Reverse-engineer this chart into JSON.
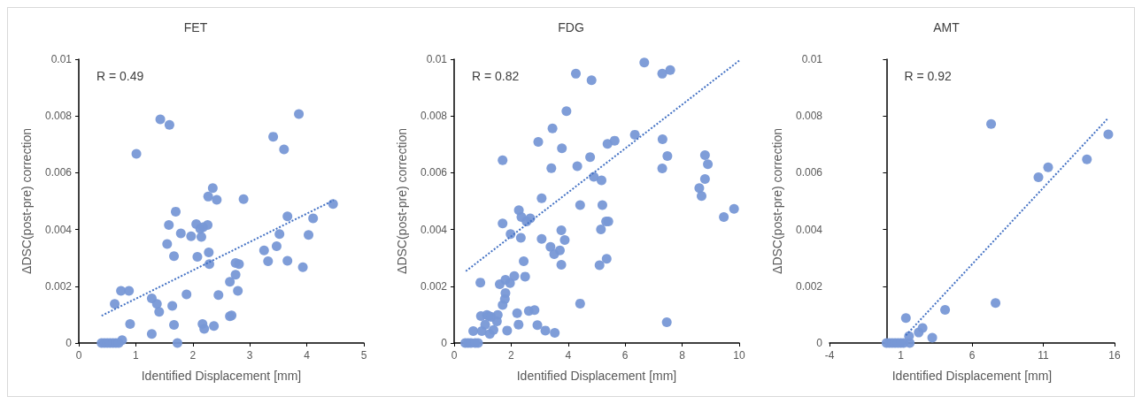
{
  "chart_data": [
    {
      "type": "scatter",
      "title": "FET",
      "xlabel": "Identified Displacement [mm]",
      "ylabel": "ΔDSC(post-pre) correction",
      "annotations": [
        "R = 0.49"
      ],
      "xlim": [
        0,
        5
      ],
      "xticks": [
        0,
        1,
        2,
        3,
        4,
        5
      ],
      "ylim": [
        0,
        0.01
      ],
      "yticks": [
        0,
        0.002,
        0.004,
        0.006,
        0.008,
        0.01
      ],
      "grid": false,
      "series": [
        {
          "marker": "circle",
          "color": "#7898d6",
          "x": [
            0.4,
            0.45,
            0.5,
            0.55,
            0.6,
            0.65,
            0.7,
            0.76,
            0.63,
            0.74,
            0.88,
            0.9,
            1.01,
            1.28,
            1.37,
            1.41,
            1.28,
            1.43,
            1.59,
            1.58,
            1.55,
            1.7,
            1.67,
            1.64,
            1.67,
            1.73,
            1.79,
            1.89,
            1.97,
            2.06,
            2.08,
            2.15,
            2.13,
            2.18,
            2.26,
            2.27,
            2.35,
            2.42,
            2.28,
            2.29,
            2.17,
            2.2,
            2.37,
            2.45,
            2.65,
            2.68,
            2.65,
            2.75,
            2.75,
            2.81,
            2.79,
            2.89,
            3.25,
            3.32,
            3.41,
            3.47,
            3.52,
            3.6,
            3.66,
            3.66,
            3.86,
            3.93,
            4.03,
            4.11,
            4.46
          ],
          "values": [
            0,
            0,
            0,
            0,
            0,
            0,
            0,
            0.0001,
            0.00138,
            0.00184,
            0.00184,
            0.00067,
            0.00667,
            0.00157,
            0.00138,
            0.0011,
            0.00032,
            0.00788,
            0.00769,
            0.00416,
            0.00349,
            0.00463,
            0.00306,
            0.00131,
            0.00064,
            0,
            0.00386,
            0.00171,
            0.00376,
            0.00419,
            0.00304,
            0.00374,
            0.00403,
            0.00408,
            0.00416,
            0.00516,
            0.00546,
            0.00505,
            0.00319,
            0.00278,
            0.00067,
            0.0005,
            0.0006,
            0.00169,
            0.00094,
            0.00097,
            0.00216,
            0.00241,
            0.00282,
            0.00278,
            0.00184,
            0.00507,
            0.00326,
            0.00288,
            0.00727,
            0.00341,
            0.00384,
            0.00682,
            0.00446,
            0.0029,
            0.00807,
            0.00267,
            0.00381,
            0.00439,
            0.0049
          ]
        },
        {
          "type": "line",
          "marker": "none",
          "line_style": "dotted",
          "color": "#4472c4",
          "x": [
            0.4,
            4.47
          ],
          "values": [
            0.00096,
            0.00503
          ]
        }
      ]
    },
    {
      "type": "scatter",
      "title": "FDG",
      "xlabel": "Identified Displacement [mm]",
      "ylabel": "ΔDSC(post-pre) correction",
      "annotations": [
        "R = 0.82"
      ],
      "xlim": [
        0,
        10
      ],
      "xticks": [
        0,
        2,
        4,
        6,
        8,
        10
      ],
      "ylim": [
        0,
        0.01
      ],
      "yticks": [
        0,
        0.002,
        0.004,
        0.006,
        0.008,
        0.01
      ],
      "grid": false,
      "series": [
        {
          "marker": "circle",
          "color": "#7898d6",
          "x": [
            0.39,
            0.49,
            0.59,
            0.74,
            0.84,
            0.67,
            0.92,
            0.94,
            0.97,
            1.09,
            1.15,
            1.22,
            1.3,
            1.25,
            1.38,
            1.5,
            1.53,
            1.6,
            1.7,
            1.7,
            1.7,
            1.78,
            1.8,
            1.8,
            1.96,
            1.98,
            1.86,
            2.11,
            2.21,
            2.26,
            2.27,
            2.34,
            2.36,
            2.44,
            2.49,
            2.54,
            2.67,
            2.62,
            2.82,
            2.92,
            2.95,
            3.07,
            3.07,
            3.2,
            3.38,
            3.41,
            3.45,
            3.51,
            3.53,
            3.71,
            3.78,
            3.76,
            3.76,
            3.88,
            3.94,
            4.27,
            4.32,
            4.42,
            4.42,
            4.77,
            4.82,
            4.9,
            5.1,
            5.15,
            5.17,
            5.2,
            5.33,
            5.38,
            5.41,
            5.35,
            5.63,
            6.34,
            6.67,
            7.3,
            7.3,
            7.31,
            7.46,
            7.48,
            7.58,
            8.6,
            8.68,
            8.8,
            8.8,
            8.9,
            9.46,
            9.82
          ],
          "values": [
            0,
            0,
            0,
            0,
            0,
            0.00042,
            0.00213,
            0.00095,
            0.00042,
            0.00065,
            0.00099,
            0.00095,
            0.00092,
            0.00032,
            0.00046,
            0.00076,
            0.00099,
            0.00207,
            0.00644,
            0.00421,
            0.00134,
            0.00155,
            0.00176,
            0.00223,
            0.00211,
            0.00384,
            0.00044,
            0.00236,
            0.00105,
            0.00065,
            0.00468,
            0.00371,
            0.00444,
            0.00288,
            0.00234,
            0.00428,
            0.00439,
            0.00113,
            0.00116,
            0.00063,
            0.00709,
            0.0051,
            0.00367,
            0.00044,
            0.00339,
            0.00616,
            0.00756,
            0.00313,
            0.00036,
            0.00326,
            0.00686,
            0.00397,
            0.00276,
            0.00363,
            0.00817,
            0.00949,
            0.00623,
            0.00486,
            0.00139,
            0.00655,
            0.00926,
            0.00586,
            0.00274,
            0.004,
            0.00573,
            0.00486,
            0.00428,
            0.00702,
            0.00428,
            0.00297,
            0.00713,
            0.00734,
            0.00988,
            0.00949,
            0.00615,
            0.00718,
            0.00073,
            0.00659,
            0.00962,
            0.00546,
            0.00518,
            0.00578,
            0.00662,
            0.0063,
            0.00444,
            0.00473
          ]
        },
        {
          "type": "line",
          "marker": "none",
          "line_style": "dotted",
          "color": "#4472c4",
          "x": [
            0.41,
            10
          ],
          "values": [
            0.00253,
            0.00995
          ]
        }
      ]
    },
    {
      "type": "scatter",
      "title": "AMT",
      "xlabel": "Identified Displacement [mm]",
      "ylabel": "ΔDSC(post-pre) correction",
      "annotations": [
        "R = 0.92"
      ],
      "xlim": [
        -4,
        16
      ],
      "xticks": [
        -4,
        1,
        6,
        11,
        16
      ],
      "ylim": [
        0,
        0.01
      ],
      "yticks": [
        0,
        0.002,
        0.004,
        0.006,
        0.008,
        0.01
      ],
      "grid": false,
      "series": [
        {
          "marker": "circle",
          "color": "#7898d6",
          "x": [
            0,
            0.2,
            0.4,
            0.6,
            0.8,
            1.0,
            1.2,
            1.63,
            1.36,
            1.4,
            1.58,
            2.26,
            2.53,
            3.21,
            4.11,
            7.34,
            7.65,
            10.66,
            11.34,
            14.06,
            15.56
          ],
          "values": [
            0,
            0,
            0,
            0,
            0,
            0,
            0,
            0,
            0.00088,
            null,
            0.00024,
            0.00037,
            0.00053,
            0.00019,
            0.00117,
            0.00772,
            0.00141,
            0.00584,
            0.00619,
            0.00647,
            0.00735
          ]
        },
        {
          "type": "line",
          "marker": "none",
          "line_style": "dotted",
          "color": "#4472c4",
          "x": [
            1.36,
            15.56
          ],
          "values": [
            0.00027,
            0.00793
          ]
        }
      ]
    }
  ]
}
